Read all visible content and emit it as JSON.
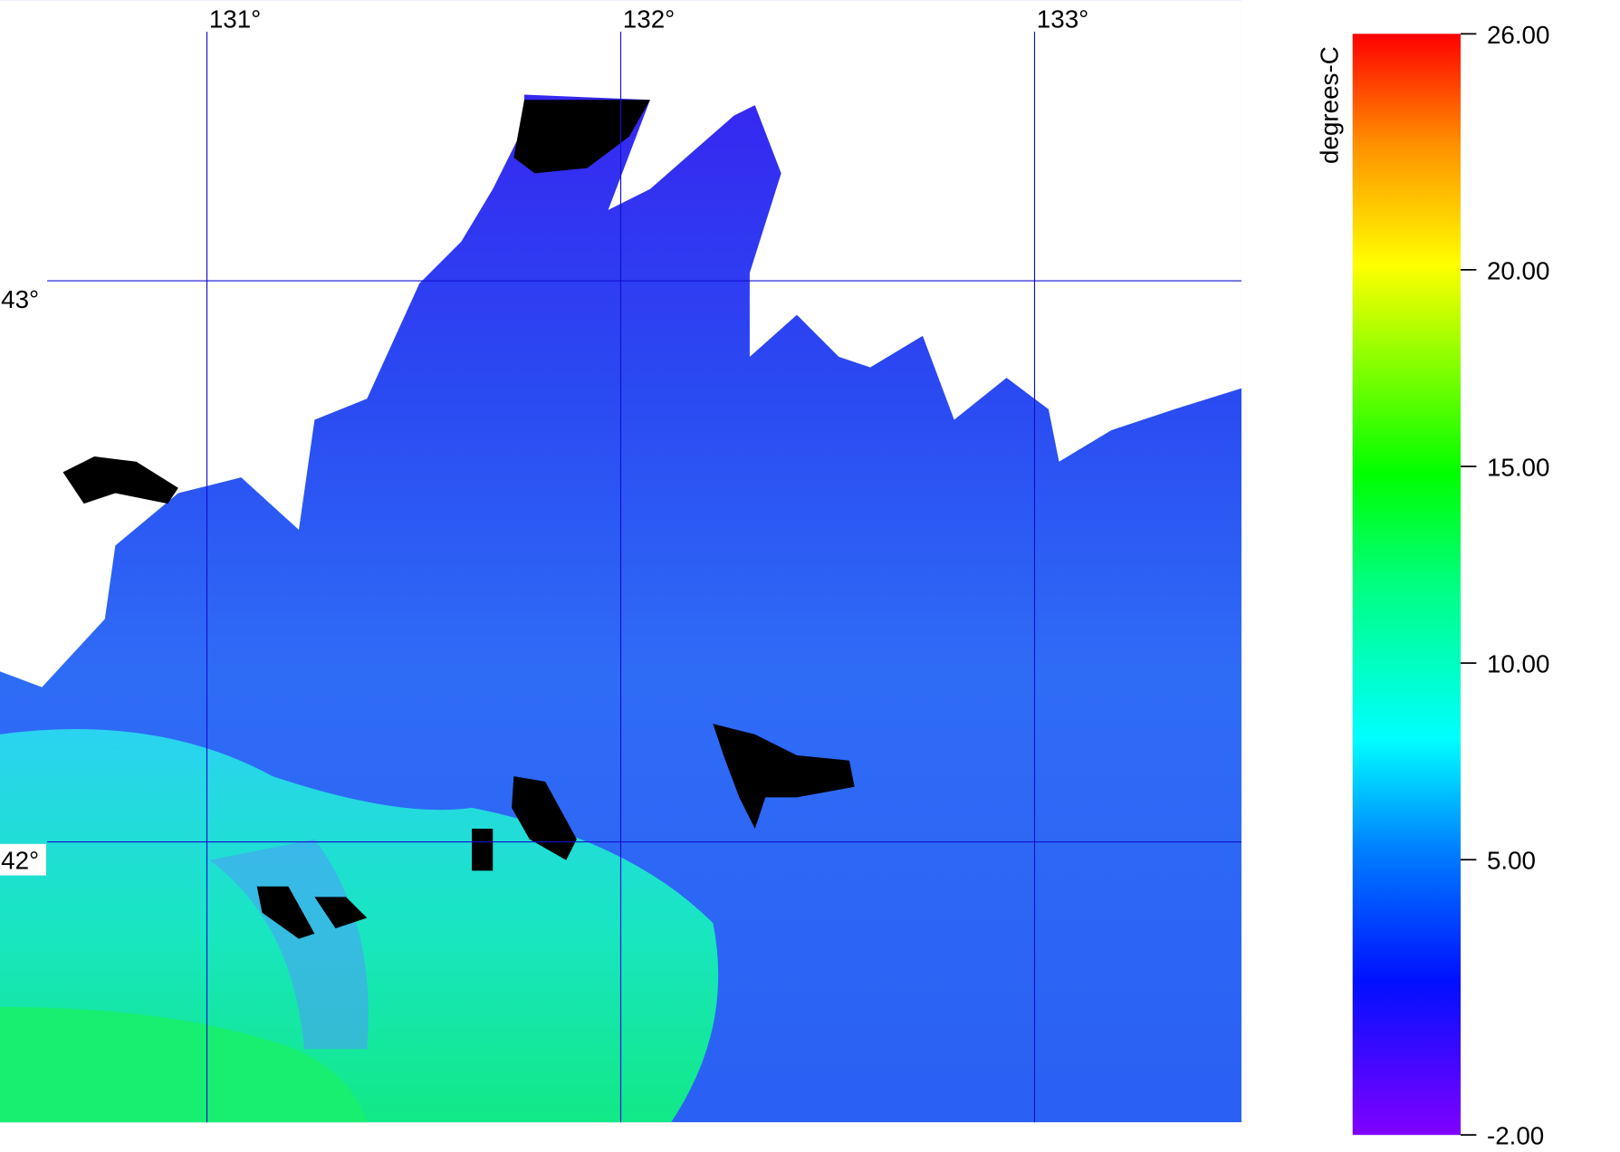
{
  "map": {
    "xlim": [
      130.5,
      133.5
    ],
    "ylim": [
      41.5,
      43.5
    ],
    "lon_ticks": [
      {
        "value": 131,
        "label": "131°"
      },
      {
        "value": 132,
        "label": "132°"
      },
      {
        "value": 133,
        "label": "133°"
      }
    ],
    "lat_ticks": [
      {
        "value": 43,
        "label": "43°"
      },
      {
        "value": 42,
        "label": "42°"
      }
    ],
    "colorbar": {
      "label": "degrees-C",
      "range": [
        -2,
        26
      ],
      "ticks": [
        {
          "value": 26,
          "label": "26.00"
        },
        {
          "value": 20,
          "label": "20.00"
        },
        {
          "value": 15,
          "label": "15.00"
        },
        {
          "value": 10,
          "label": "10.00"
        },
        {
          "value": 5,
          "label": "5.00"
        },
        {
          "value": -2,
          "label": "-2.00"
        }
      ]
    }
  }
}
